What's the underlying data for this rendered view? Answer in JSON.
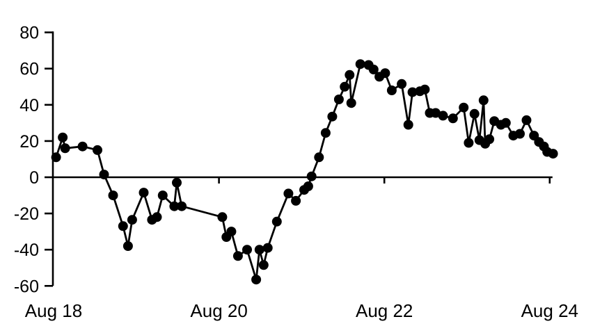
{
  "chart_data": {
    "type": "line",
    "title": "",
    "xlabel": "",
    "ylabel": "",
    "background": "#ffffff",
    "line_color": "#000000",
    "marker_color": "#000000",
    "marker": "filled-circle",
    "grid": false,
    "legend": false,
    "x_note": "x values are day-of-month in August; 18.0 = Aug 18 at the y-axis, 24.0 = Aug 24 tick",
    "xlim": [
      18,
      24.1
    ],
    "ylim": [
      -60,
      80
    ],
    "x_axis_at_y": 0,
    "yticks": [
      80,
      60,
      40,
      20,
      0,
      -20,
      -40,
      -60
    ],
    "xticks": [
      {
        "value": 18,
        "label": "Aug 18",
        "tick_mark": false
      },
      {
        "value": 20,
        "label": "Aug 20",
        "tick_mark": true
      },
      {
        "value": 22,
        "label": "Aug 22",
        "tick_mark": true
      },
      {
        "value": 24,
        "label": "Aug 24",
        "tick_mark": true
      }
    ],
    "points": [
      [
        18.03,
        11
      ],
      [
        18.11,
        22
      ],
      [
        18.14,
        16
      ],
      [
        18.35,
        17
      ],
      [
        18.53,
        15
      ],
      [
        18.61,
        1.5
      ],
      [
        18.72,
        -10
      ],
      [
        18.84,
        -27
      ],
      [
        18.9,
        -38
      ],
      [
        18.95,
        -23.5
      ],
      [
        19.09,
        -8.5
      ],
      [
        19.19,
        -23.5
      ],
      [
        19.25,
        -22
      ],
      [
        19.32,
        -10
      ],
      [
        19.46,
        -16
      ],
      [
        19.49,
        -3
      ],
      [
        19.55,
        -16
      ],
      [
        20.04,
        -22
      ],
      [
        20.09,
        -33
      ],
      [
        20.15,
        -30
      ],
      [
        20.23,
        -43.5
      ],
      [
        20.34,
        -40
      ],
      [
        20.45,
        -56.5
      ],
      [
        20.49,
        -40
      ],
      [
        20.54,
        -48.5
      ],
      [
        20.59,
        -39
      ],
      [
        20.7,
        -24.5
      ],
      [
        20.84,
        -9
      ],
      [
        20.93,
        -13
      ],
      [
        21.03,
        -7
      ],
      [
        21.08,
        -5
      ],
      [
        21.12,
        0.5
      ],
      [
        21.21,
        11
      ],
      [
        21.29,
        24.5
      ],
      [
        21.37,
        33.5
      ],
      [
        21.45,
        43
      ],
      [
        21.52,
        50
      ],
      [
        21.58,
        56.5
      ],
      [
        21.6,
        41
      ],
      [
        21.71,
        62.5
      ],
      [
        21.81,
        62
      ],
      [
        21.87,
        59.5
      ],
      [
        21.94,
        55.5
      ],
      [
        22.01,
        57.5
      ],
      [
        22.09,
        48
      ],
      [
        22.21,
        51.5
      ],
      [
        22.29,
        29
      ],
      [
        22.34,
        47
      ],
      [
        22.43,
        47.5
      ],
      [
        22.49,
        48.5
      ],
      [
        22.55,
        35.5
      ],
      [
        22.62,
        35.5
      ],
      [
        22.71,
        34
      ],
      [
        22.83,
        32.5
      ],
      [
        22.96,
        38.5
      ],
      [
        23.02,
        19
      ],
      [
        23.09,
        35
      ],
      [
        23.15,
        20.5
      ],
      [
        23.2,
        42.5
      ],
      [
        23.22,
        18.5
      ],
      [
        23.27,
        21
      ],
      [
        23.33,
        31
      ],
      [
        23.41,
        29
      ],
      [
        23.47,
        30
      ],
      [
        23.56,
        23
      ],
      [
        23.64,
        24
      ],
      [
        23.72,
        31.5
      ],
      [
        23.81,
        23
      ],
      [
        23.87,
        19.5
      ],
      [
        23.93,
        17
      ],
      [
        23.97,
        14
      ],
      [
        24.04,
        13
      ]
    ],
    "style": {
      "line_width": 2.8,
      "axis_width": 2.6,
      "marker_radius": 7,
      "ytick_font_size": 25,
      "xtick_font_size": 26
    }
  }
}
